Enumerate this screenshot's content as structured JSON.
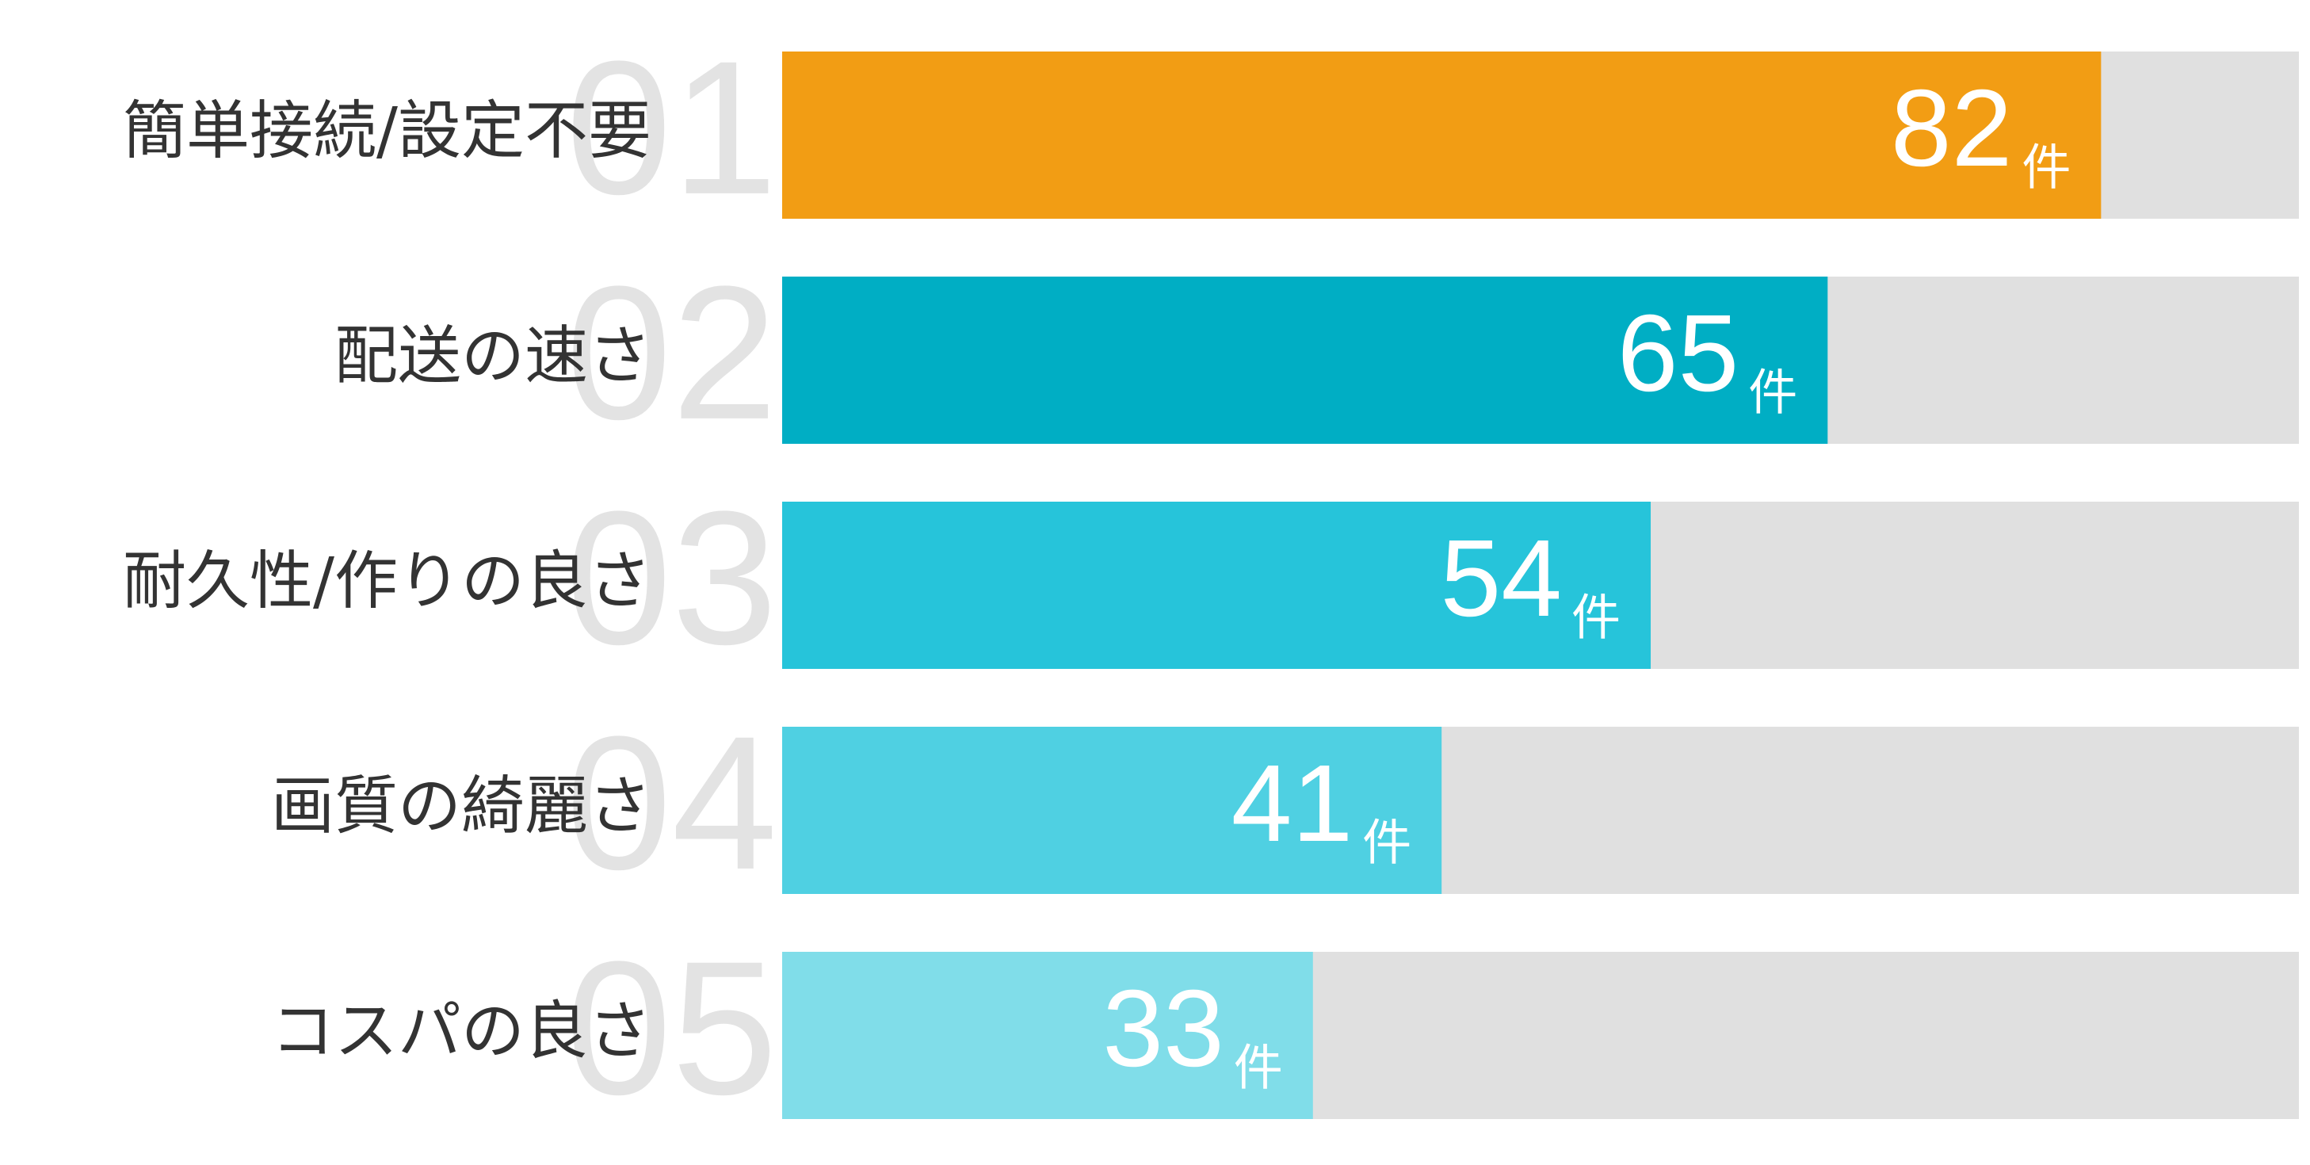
{
  "chart_data": {
    "type": "rankbar",
    "categories": [
      "簡単接続/設定不要",
      "配送の速さ",
      "耐久性/作りの良さ",
      "画質の綺麗さ",
      "コスパの良さ"
    ],
    "ranks": [
      "01",
      "02",
      "03",
      "04",
      "05"
    ],
    "values": [
      82,
      65,
      54,
      41,
      33
    ],
    "unit": "件",
    "colors": [
      "#f29d14",
      "#00aec4",
      "#26c4da",
      "#4fd0e2",
      "#80dde9"
    ],
    "track_color": "#e0e0e0",
    "xlim": [
      0,
      94.3
    ]
  }
}
